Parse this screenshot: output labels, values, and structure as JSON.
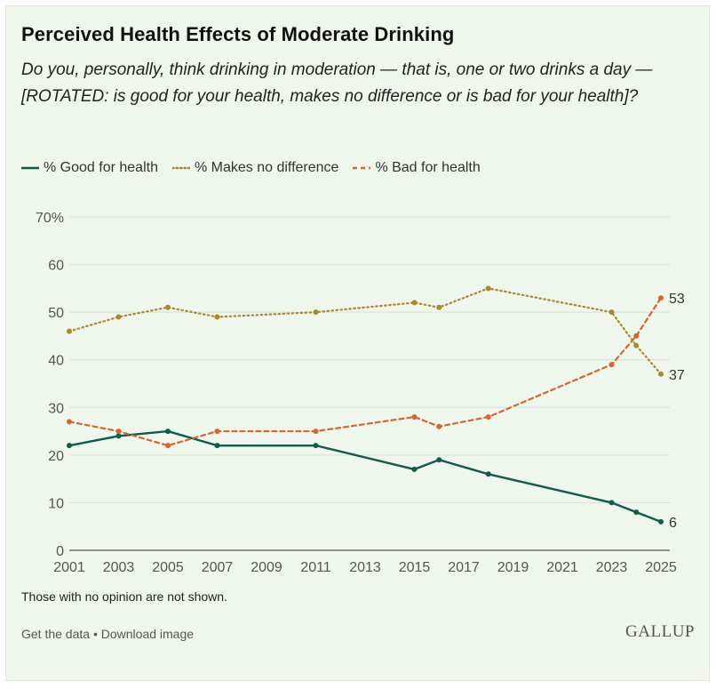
{
  "header": {
    "title": "Perceived Health Effects of Moderate Drinking",
    "subtitle": "Do you, personally, think drinking in moderation — that is, one or two drinks a day — [ROTATED: is good for your health, makes no difference or is bad for your health]?"
  },
  "legend": {
    "good": "% Good for health",
    "nodiff": "% Makes no difference",
    "bad": "% Bad for health"
  },
  "note": "Those with no opinion are not shown.",
  "footer": {
    "get_data": "Get the data",
    "separator": " • ",
    "download": "Download image",
    "logo": "GALLUP"
  },
  "colors": {
    "good": "#0d5c4c",
    "nodiff": "#a88a2e",
    "bad": "#d5662f",
    "grid": "#d9e0d6",
    "axis": "#555555"
  },
  "chart_data": {
    "type": "line",
    "title": "Perceived Health Effects of Moderate Drinking",
    "xlabel": "",
    "ylabel": "",
    "xlim": [
      2001,
      2025
    ],
    "ylim": [
      0,
      70
    ],
    "x_ticks": [
      2001,
      2003,
      2005,
      2007,
      2009,
      2011,
      2013,
      2015,
      2017,
      2019,
      2021,
      2023,
      2025
    ],
    "y_ticks": [
      0,
      10,
      20,
      30,
      40,
      50,
      60,
      70
    ],
    "y_tick_labels": [
      "0",
      "10",
      "20",
      "30",
      "40",
      "50",
      "60",
      "70%"
    ],
    "grid": true,
    "legend_position": "top-left",
    "series": [
      {
        "key": "good",
        "name": "% Good for health",
        "style": "solid",
        "x": [
          2001,
          2003,
          2005,
          2007,
          2011,
          2015,
          2016,
          2018,
          2023,
          2024,
          2025
        ],
        "values": [
          22,
          24,
          25,
          22,
          22,
          17,
          19,
          16,
          10,
          8,
          6
        ],
        "end_label": "6"
      },
      {
        "key": "nodiff",
        "name": "% Makes no difference",
        "style": "dotted",
        "x": [
          2001,
          2003,
          2005,
          2007,
          2011,
          2015,
          2016,
          2018,
          2023,
          2024,
          2025
        ],
        "values": [
          46,
          49,
          51,
          49,
          50,
          52,
          51,
          55,
          50,
          43,
          37
        ],
        "end_label": "37"
      },
      {
        "key": "bad",
        "name": "% Bad for health",
        "style": "dashed",
        "x": [
          2001,
          2003,
          2005,
          2007,
          2011,
          2015,
          2016,
          2018,
          2023,
          2024,
          2025
        ],
        "values": [
          27,
          25,
          22,
          25,
          25,
          28,
          26,
          28,
          39,
          45,
          53
        ],
        "end_label": "53"
      }
    ]
  }
}
